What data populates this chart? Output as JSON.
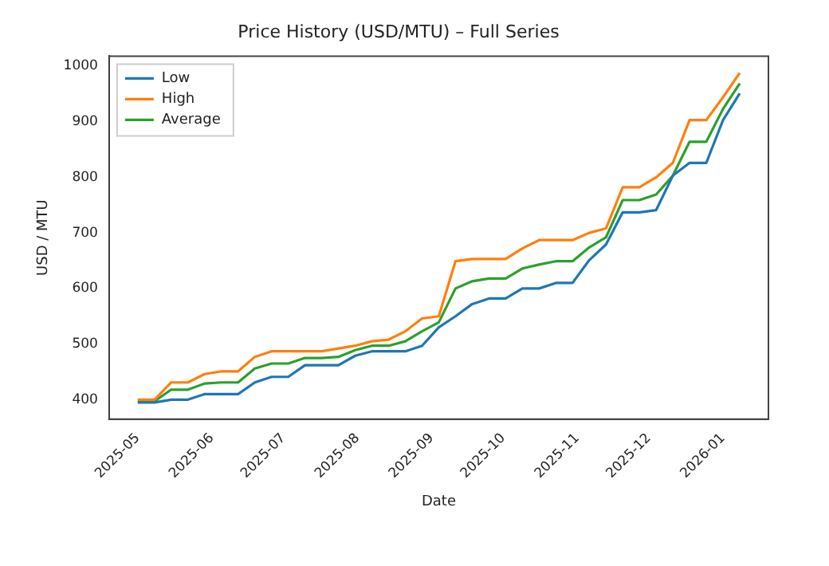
{
  "chart_data": {
    "type": "line",
    "title": "Price History (USD/MTU) – Full Series",
    "xlabel": "Date",
    "ylabel": "USD / MTU",
    "x": [
      "2025-05-01",
      "2025-05-08",
      "2025-05-15",
      "2025-05-22",
      "2025-05-29",
      "2025-06-05",
      "2025-06-12",
      "2025-06-19",
      "2025-06-26",
      "2025-07-03",
      "2025-07-10",
      "2025-07-17",
      "2025-07-24",
      "2025-07-31",
      "2025-08-07",
      "2025-08-14",
      "2025-08-21",
      "2025-08-28",
      "2025-09-04",
      "2025-09-11",
      "2025-09-18",
      "2025-09-25",
      "2025-10-02",
      "2025-10-09",
      "2025-10-16",
      "2025-10-23",
      "2025-10-30",
      "2025-11-06",
      "2025-11-13",
      "2025-11-20",
      "2025-11-27",
      "2025-12-04",
      "2025-12-11",
      "2025-12-18",
      "2025-12-25",
      "2026-01-01",
      "2026-01-08"
    ],
    "series": [
      {
        "name": "Low",
        "color": "#1f77b4",
        "values": [
          395,
          395,
          400,
          400,
          410,
          410,
          410,
          431,
          441,
          441,
          462,
          462,
          462,
          479,
          487,
          487,
          487,
          497,
          530,
          550,
          572,
          582,
          582,
          600,
          600,
          610,
          610,
          651,
          679,
          737,
          737,
          741,
          803,
          826,
          826,
          903,
          951
        ]
      },
      {
        "name": "High",
        "color": "#ff7f0e",
        "values": [
          400,
          400,
          431,
          431,
          446,
          451,
          451,
          477,
          487,
          487,
          487,
          487,
          492,
          497,
          505,
          508,
          523,
          546,
          550,
          649,
          653,
          653,
          653,
          672,
          687,
          687,
          687,
          700,
          708,
          782,
          782,
          800,
          826,
          903,
          903,
          944,
          988
        ]
      },
      {
        "name": "Average",
        "color": "#2ca02c",
        "values": [
          397,
          397,
          418,
          418,
          429,
          431,
          431,
          456,
          465,
          465,
          475,
          475,
          477,
          489,
          497,
          497,
          505,
          523,
          539,
          600,
          613,
          618,
          618,
          636,
          643,
          649,
          649,
          674,
          692,
          759,
          759,
          769,
          803,
          864,
          864,
          923,
          969
        ]
      }
    ],
    "xlim": [
      "2025-04-19",
      "2026-01-20"
    ],
    "xticks": [
      "2025-05",
      "2025-06",
      "2025-07",
      "2025-08",
      "2025-09",
      "2025-10",
      "2025-11",
      "2025-12",
      "2026-01"
    ],
    "ylim": [
      365,
      1018
    ],
    "yticks": [
      400,
      500,
      600,
      700,
      800,
      900,
      1000
    ],
    "grid": false,
    "legend": "top left",
    "marker": "none",
    "line_style": "solid"
  }
}
